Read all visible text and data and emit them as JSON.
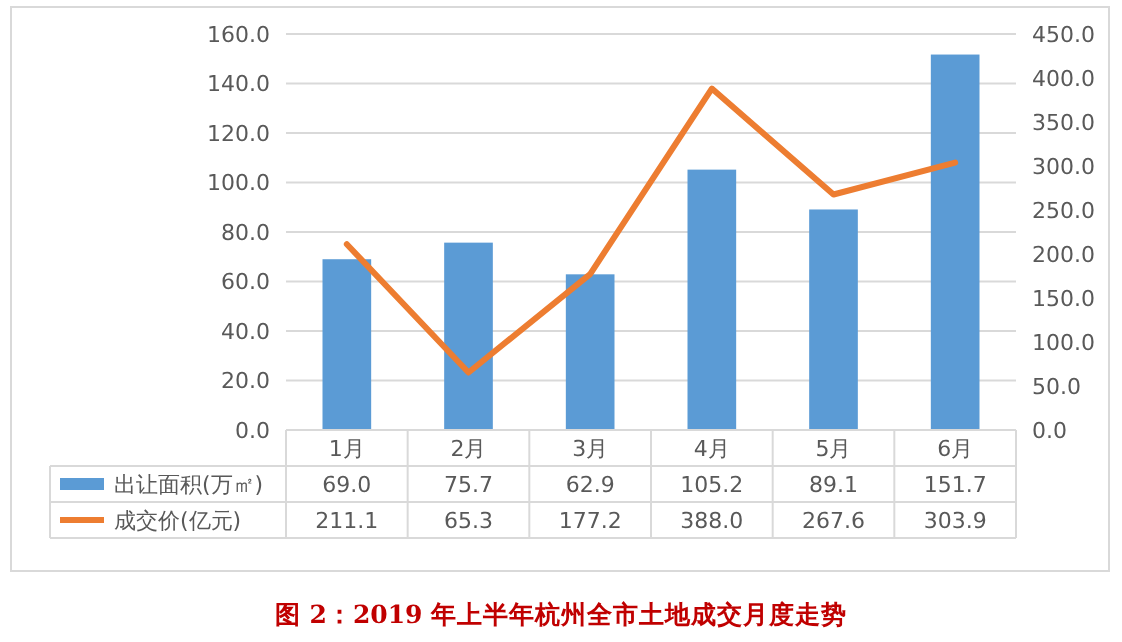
{
  "chart_data": {
    "type": "bar",
    "title": "图 2：2019 年上半年杭州全市土地成交月度走势",
    "categories": [
      "1月",
      "2月",
      "3月",
      "4月",
      "5月",
      "6月"
    ],
    "series": [
      {
        "name": "出让面积(万㎡)",
        "color": "#5b9bd5",
        "values": [
          69.0,
          75.7,
          62.9,
          105.2,
          89.1,
          151.7
        ],
        "value_labels": [
          "69.0",
          "75.7",
          "62.9",
          "105.2",
          "89.1",
          "151.7"
        ]
      },
      {
        "name": "成交价(亿元)",
        "type": "line",
        "axis": "y2",
        "color": "#ed7d31",
        "values": [
          211.1,
          65.3,
          177.2,
          388.0,
          267.6,
          303.9
        ],
        "value_labels": [
          "211.1",
          "65.3",
          "177.2",
          "388.0",
          "267.6",
          "303.9"
        ]
      }
    ],
    "ylim": [
      0,
      160
    ],
    "yticks": [
      {
        "value": 0,
        "label": "0.0"
      },
      {
        "value": 20,
        "label": "20.0"
      },
      {
        "value": 40,
        "label": "40.0"
      },
      {
        "value": 60,
        "label": "60.0"
      },
      {
        "value": 80,
        "label": "80.0"
      },
      {
        "value": 100,
        "label": "100.0"
      },
      {
        "value": 120,
        "label": "120.0"
      },
      {
        "value": 140,
        "label": "140.0"
      },
      {
        "value": 160,
        "label": "160.0"
      }
    ],
    "y2lim": [
      0,
      450
    ],
    "y2ticks": [
      {
        "value": 0,
        "label": "0.0"
      },
      {
        "value": 50,
        "label": "50.0"
      },
      {
        "value": 100,
        "label": "100.0"
      },
      {
        "value": 150,
        "label": "150.0"
      },
      {
        "value": 200,
        "label": "200.0"
      },
      {
        "value": 250,
        "label": "250.0"
      },
      {
        "value": 300,
        "label": "300.0"
      },
      {
        "value": 350,
        "label": "350.0"
      },
      {
        "value": 400,
        "label": "400.0"
      },
      {
        "value": 450,
        "label": "450.0"
      }
    ],
    "grid": "y",
    "legend": "bottom left",
    "marker": "none"
  }
}
